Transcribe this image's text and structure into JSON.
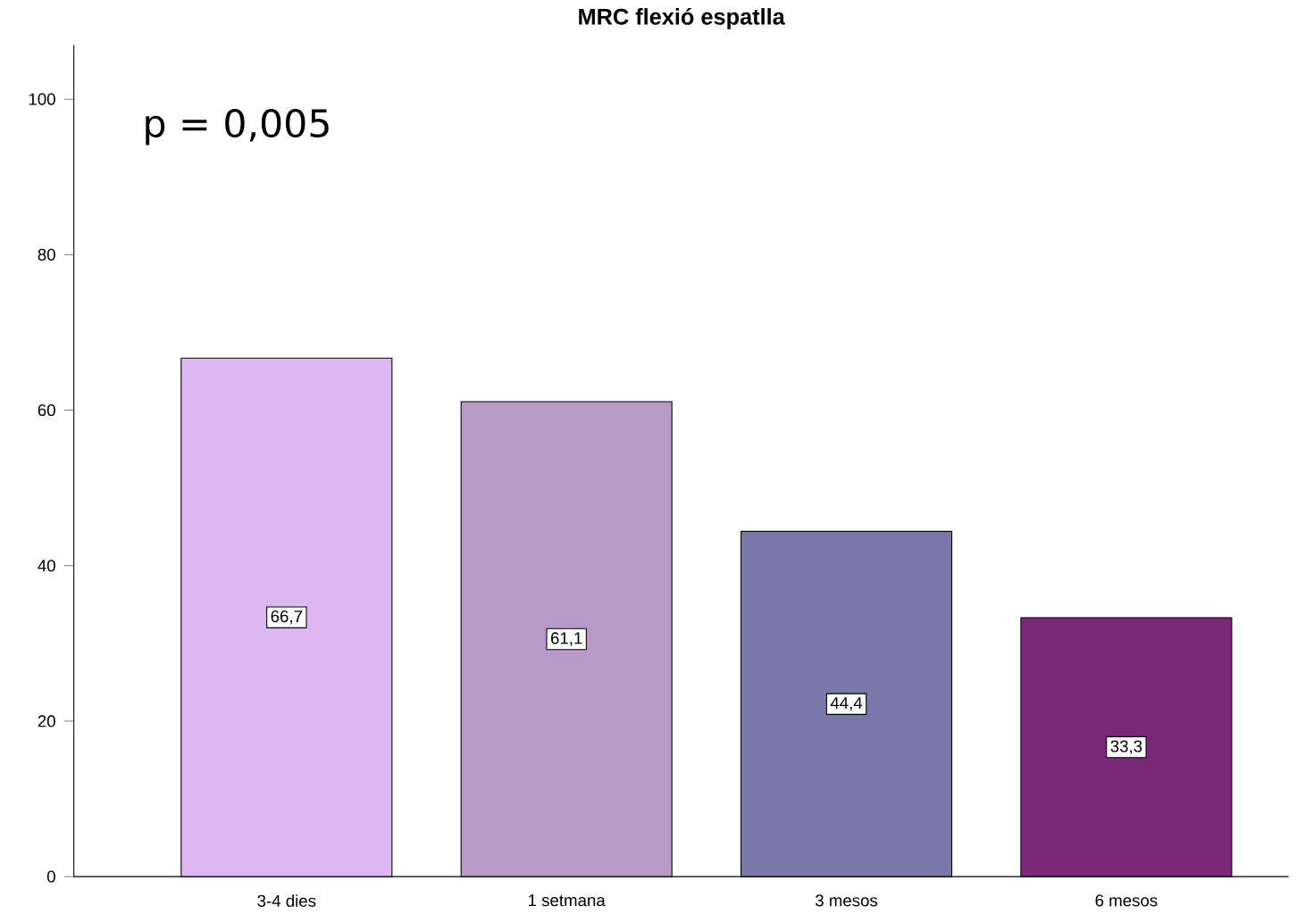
{
  "chart_data": {
    "type": "bar",
    "title": "MRC flexió espatlla",
    "categories": [
      "3-4 dies",
      "1 setmana",
      "3 mesos",
      "6 mesos"
    ],
    "values": [
      66.7,
      61.1,
      44.4,
      33.3
    ],
    "colors": [
      "#dcb8f2",
      "#b89ac8",
      "#7a78a8",
      "#7a2878"
    ],
    "value_labels": [
      "66,7",
      "61,1",
      "44,4",
      "33,3"
    ],
    "ylim": [
      0,
      107
    ],
    "yticks": [
      0,
      20,
      40,
      60,
      80,
      100
    ],
    "annotations": [
      "p = 0,005"
    ]
  }
}
